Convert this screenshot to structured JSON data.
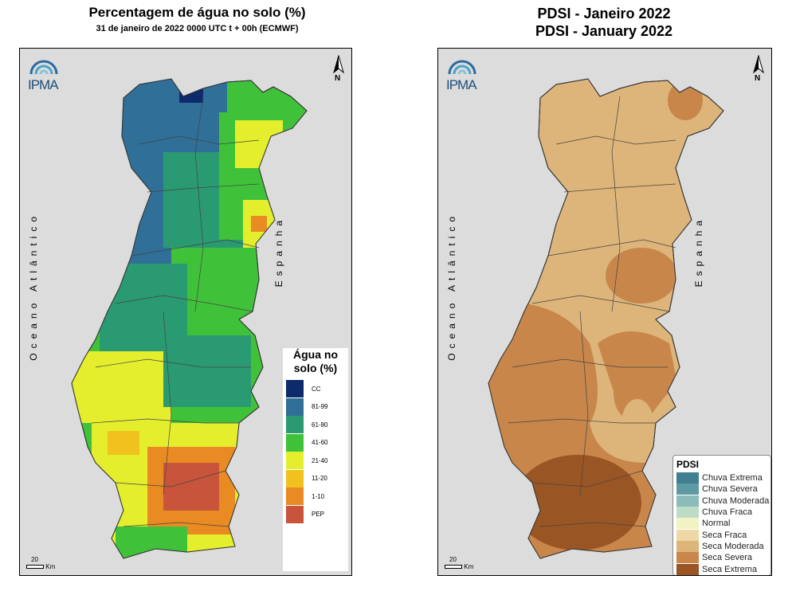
{
  "left_map": {
    "title": "Percentagem de água no solo (%)",
    "subtitle": "31 de janeiro de 2022 0000 UTC t + 00h (ECMWF)",
    "logo_text": "IPMA",
    "north_label": "N",
    "ocean_label": "Oceano Atlântico",
    "spain_label": "Espanha",
    "scale_value": "20",
    "scale_unit": "Km",
    "legend": {
      "title_line1": "Água no",
      "title_line2": "solo (%)",
      "classes": [
        {
          "label": "CC",
          "color": "#0d2a6b"
        },
        {
          "label": "81-99",
          "color": "#2f6f98"
        },
        {
          "label": "61-80",
          "color": "#2a9a72"
        },
        {
          "label": "41-60",
          "color": "#3fc23a"
        },
        {
          "label": "21-40",
          "color": "#e4ee2c"
        },
        {
          "label": "11-20",
          "color": "#f1c21e"
        },
        {
          "label": "1-10",
          "color": "#e98b22"
        },
        {
          "label": "PEP",
          "color": "#c9543c"
        }
      ]
    }
  },
  "right_map": {
    "title_line1": "PDSI - Janeiro 2022",
    "title_line2": "PDSI - January 2022",
    "logo_text": "IPMA",
    "north_label": "N",
    "ocean_label": "Oceano Atlântico",
    "spain_label": "Espanha",
    "scale_value": "20",
    "scale_unit": "Km",
    "legend": {
      "title": "PDSI",
      "classes": [
        {
          "label": "Chuva Extrema",
          "color": "#3f7f8f"
        },
        {
          "label": "Chuva Severa",
          "color": "#5d9aa4"
        },
        {
          "label": "Chuva Moderada",
          "color": "#8cbcb9"
        },
        {
          "label": "Chuva Fraca",
          "color": "#bddcc6"
        },
        {
          "label": "Normal",
          "color": "#f2f2c4"
        },
        {
          "label": "Seca Fraca",
          "color": "#eed9a6"
        },
        {
          "label": "Seca Moderada",
          "color": "#ddb47a"
        },
        {
          "label": "Seca Severa",
          "color": "#c8864b"
        },
        {
          "label": "Seca Extrema",
          "color": "#9a5524"
        }
      ]
    }
  }
}
